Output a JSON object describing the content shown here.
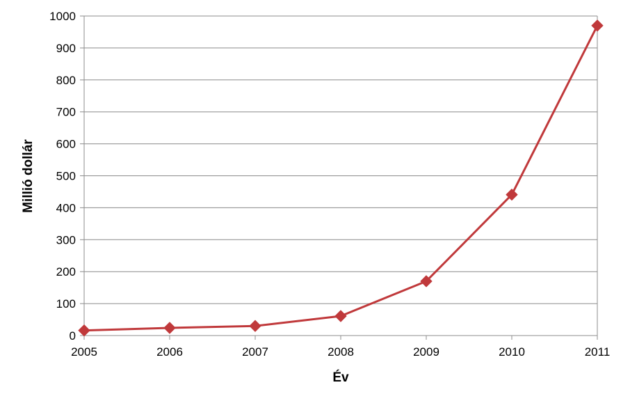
{
  "chart_data": {
    "type": "line",
    "title": "",
    "xlabel": "Év",
    "ylabel": "Millió dollár",
    "x": [
      "2005",
      "2006",
      "2007",
      "2008",
      "2009",
      "2010",
      "2011"
    ],
    "series": [
      {
        "values": [
          16,
          24,
          30,
          61,
          170,
          441,
          970
        ],
        "color": "#C0393B",
        "marker": "diamond"
      }
    ],
    "ylim": [
      0,
      1000
    ],
    "yticks": [
      0,
      100,
      200,
      300,
      400,
      500,
      600,
      700,
      800,
      900,
      1000
    ],
    "grid": "horizontal",
    "legend": "none"
  }
}
